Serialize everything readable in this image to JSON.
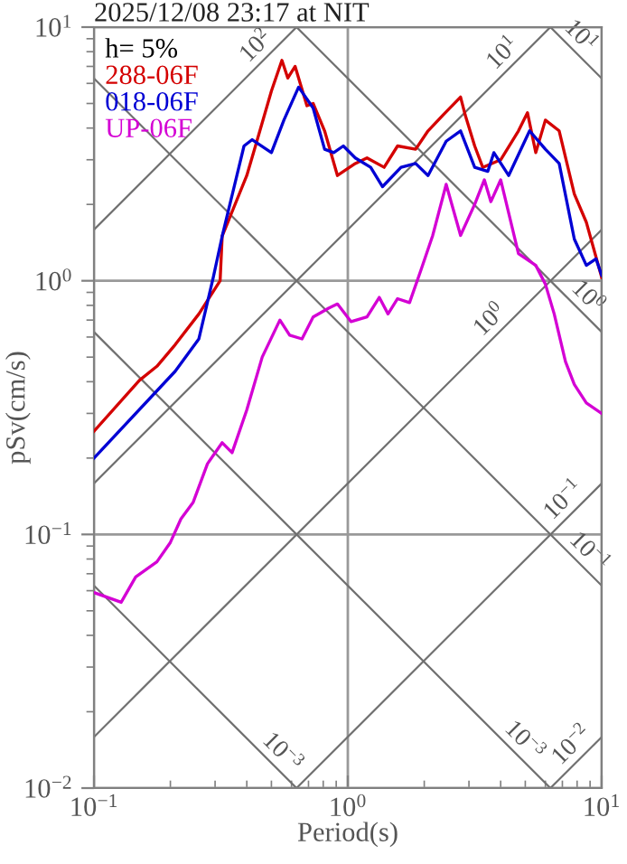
{
  "chart_data": {
    "type": "line",
    "title": "2025/12/08 23:17 at NIT",
    "xlabel": "Period(s)",
    "ylabel": "pSv(cm/s)",
    "legend_title": "h= 5%",
    "log": "xy",
    "grid": true,
    "legend": "top left",
    "line_style": "solid",
    "marker": "none",
    "xlim": [
      0.1,
      10
    ],
    "ylim": [
      0.01,
      10
    ],
    "xticks": [
      {
        "value": 0.1,
        "label": "10$^{−1}$"
      },
      {
        "value": 1,
        "label": "10$^{0}$"
      },
      {
        "value": 10,
        "label": "10$^{1}$"
      }
    ],
    "yticks": [
      {
        "value": 0.01,
        "label": "10$^{−2}$"
      },
      {
        "value": 0.1,
        "label": "10$^{−1}$"
      },
      {
        "value": 1,
        "label": "10$^{0}$"
      },
      {
        "value": 10,
        "label": "10$^{1}$"
      }
    ],
    "series": [
      {
        "color": "#707070",
        "x": [
          0.1,
          0.628
        ],
        "values": [
          1.59,
          10
        ]
      },
      {
        "color": "#707070",
        "x": [
          0.1,
          6.28
        ],
        "values": [
          0.159,
          10
        ]
      },
      {
        "color": "#707070",
        "x": [
          0.1,
          10
        ],
        "values": [
          0.0159,
          1.59
        ]
      },
      {
        "color": "#707070",
        "x": [
          0.628,
          10
        ],
        "values": [
          0.01,
          0.159
        ]
      },
      {
        "color": "#707070",
        "x": [
          6.28,
          10
        ],
        "values": [
          0.01,
          0.0159
        ]
      },
      {
        "color": "#707070",
        "x": [
          6.28,
          10
        ],
        "values": [
          10,
          6.28
        ]
      },
      {
        "color": "#707070",
        "x": [
          0.628,
          10
        ],
        "values": [
          10,
          0.628
        ]
      },
      {
        "color": "#707070",
        "x": [
          0.1,
          10
        ],
        "values": [
          6.28,
          0.0628
        ]
      },
      {
        "color": "#707070",
        "x": [
          0.1,
          6.28
        ],
        "values": [
          0.628,
          0.01
        ]
      },
      {
        "color": "#707070",
        "x": [
          0.1,
          0.628
        ],
        "values": [
          0.0628,
          0.01
        ]
      },
      {
        "name": "288-06F",
        "color": "#d40000",
        "x": [
          0.1,
          0.151,
          0.177,
          0.209,
          0.259,
          0.314,
          0.32,
          0.4,
          0.44,
          0.5,
          0.55,
          0.58,
          0.62,
          0.69,
          0.73,
          0.81,
          0.91,
          1.07,
          1.19,
          1.39,
          1.57,
          1.85,
          2.07,
          2.37,
          2.78,
          2.9,
          3.16,
          3.4,
          4.0,
          4.7,
          5.1,
          5.5,
          6.0,
          6.8,
          7.8,
          8.7,
          10
        ],
        "values": [
          0.255,
          0.405,
          0.46,
          0.56,
          0.74,
          1.0,
          1.5,
          2.6,
          3.6,
          5.6,
          7.4,
          6.3,
          7.0,
          4.9,
          5.0,
          3.9,
          2.6,
          2.9,
          3.05,
          2.8,
          3.4,
          3.3,
          3.9,
          4.5,
          5.3,
          4.5,
          3.4,
          2.8,
          3.0,
          3.9,
          4.6,
          3.2,
          4.3,
          3.9,
          2.2,
          1.7,
          1.03
        ]
      },
      {
        "name": "018-06F",
        "color": "#0000d4",
        "x": [
          0.1,
          0.209,
          0.259,
          0.295,
          0.32,
          0.39,
          0.42,
          0.5,
          0.56,
          0.64,
          0.73,
          0.81,
          0.88,
          0.96,
          1.07,
          1.23,
          1.37,
          1.62,
          1.85,
          2.07,
          2.44,
          2.78,
          3.16,
          3.56,
          3.76,
          4.3,
          5.2,
          6.0,
          6.8,
          7.8,
          8.7,
          9.5,
          10
        ],
        "values": [
          0.2,
          0.44,
          0.59,
          1.03,
          1.5,
          3.4,
          3.6,
          3.2,
          4.3,
          5.8,
          4.8,
          3.3,
          3.2,
          3.4,
          3.05,
          2.8,
          2.35,
          2.8,
          2.9,
          2.6,
          3.55,
          3.9,
          2.8,
          2.7,
          3.2,
          2.6,
          3.9,
          3.3,
          2.9,
          1.46,
          1.15,
          1.22,
          1.05
        ]
      },
      {
        "name": "UP-06F",
        "color": "#d400d4",
        "x": [
          0.1,
          0.128,
          0.146,
          0.177,
          0.2,
          0.22,
          0.246,
          0.28,
          0.32,
          0.35,
          0.4,
          0.46,
          0.54,
          0.59,
          0.66,
          0.73,
          0.84,
          0.91,
          1.03,
          1.19,
          1.33,
          1.44,
          1.57,
          1.75,
          1.94,
          2.16,
          2.44,
          2.78,
          3.16,
          3.45,
          3.66,
          4.0,
          4.7,
          5.5,
          6.0,
          6.5,
          7.2,
          7.8,
          8.7,
          10
        ],
        "values": [
          0.059,
          0.054,
          0.068,
          0.078,
          0.093,
          0.115,
          0.134,
          0.19,
          0.23,
          0.21,
          0.31,
          0.5,
          0.7,
          0.61,
          0.59,
          0.72,
          0.78,
          0.81,
          0.69,
          0.72,
          0.86,
          0.74,
          0.85,
          0.82,
          1.1,
          1.51,
          2.4,
          1.51,
          2.0,
          2.5,
          2.05,
          2.5,
          1.28,
          1.15,
          0.97,
          0.74,
          0.48,
          0.39,
          0.33,
          0.3
        ]
      }
    ],
    "annotations": [
      {
        "text": "10$^{2}$",
        "x": 0.48,
        "y": 7.64
      },
      {
        "text": "10$^{1}$",
        "x": 4.5,
        "y": 7.16
      },
      {
        "text": "10$^{1}$",
        "x": 7.5,
        "y": 8.37
      },
      {
        "text": "10$^{0}$",
        "x": 4.0,
        "y": 0.637
      },
      {
        "text": "10$^{0}$",
        "x": 8.0,
        "y": 0.785
      },
      {
        "text": "10$^{−1}$",
        "x": 7.8,
        "y": 0.124
      },
      {
        "text": "10$^{−1}$",
        "x": 8.1,
        "y": 0.0775
      },
      {
        "text": "10$^{−3}$",
        "x": 0.5,
        "y": 0.01256
      },
      {
        "text": "10$^{−3}$",
        "x": 4.5,
        "y": 0.01396
      },
      {
        "text": "10$^{−2}$",
        "x": 8.4,
        "y": 0.0134
      }
    ]
  }
}
